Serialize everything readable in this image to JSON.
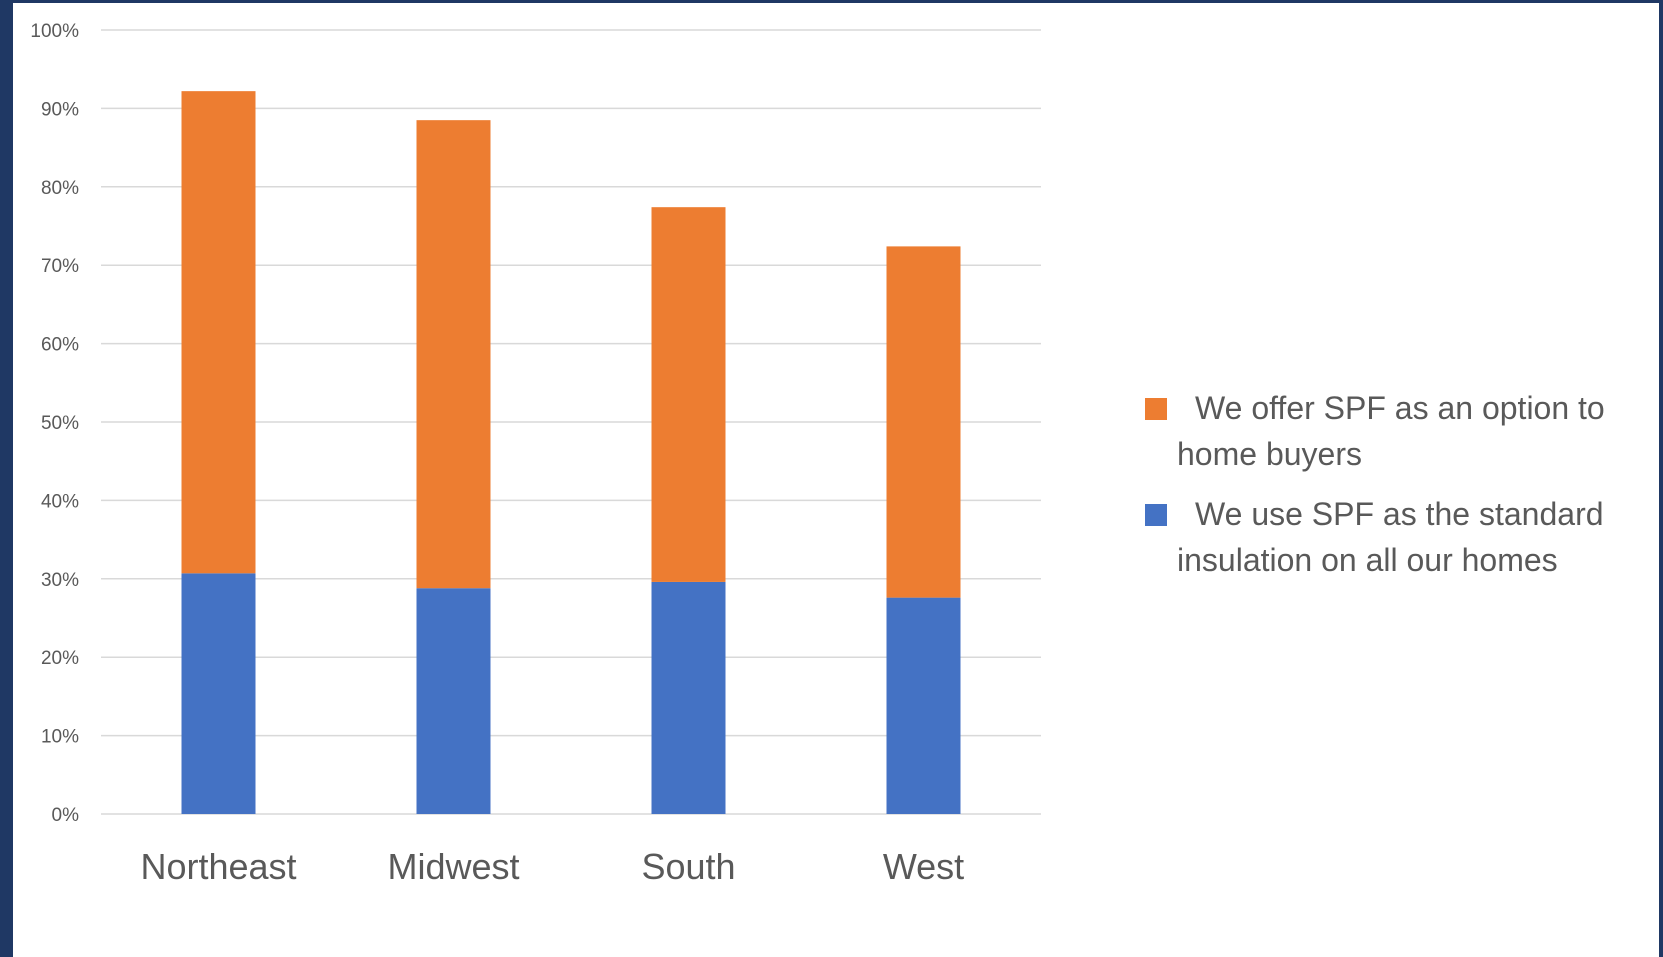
{
  "chart_data": {
    "type": "bar",
    "stacked": true,
    "categories": [
      "Northeast",
      "Midwest",
      "South",
      "West"
    ],
    "series": [
      {
        "name": "We use SPF as the standard insulation on all our homes",
        "values": [
          30.7,
          28.8,
          29.6,
          27.6
        ],
        "color": "#4472c4"
      },
      {
        "name": "We offer SPF as an option to home buyers",
        "values": [
          61.5,
          59.7,
          47.8,
          44.8
        ],
        "color": "#ed7d31"
      }
    ],
    "ylim": [
      0,
      100
    ],
    "yticks": [
      "0%",
      "10%",
      "20%",
      "30%",
      "40%",
      "50%",
      "60%",
      "70%",
      "80%",
      "90%",
      "100%"
    ],
    "grid": true,
    "legend_position": "right",
    "title": "",
    "xlabel": "",
    "ylabel": ""
  },
  "legend": {
    "items": [
      {
        "label": "We offer SPF as an option to home buyers",
        "color": "#ed7d31"
      },
      {
        "label": "We use SPF as the standard insulation on all our homes",
        "color": "#4472c4"
      }
    ]
  },
  "colors": {
    "background": "#1f3864",
    "plot_background": "#ffffff",
    "gridline": "#d9d9d9",
    "axis_text": "#595959"
  }
}
